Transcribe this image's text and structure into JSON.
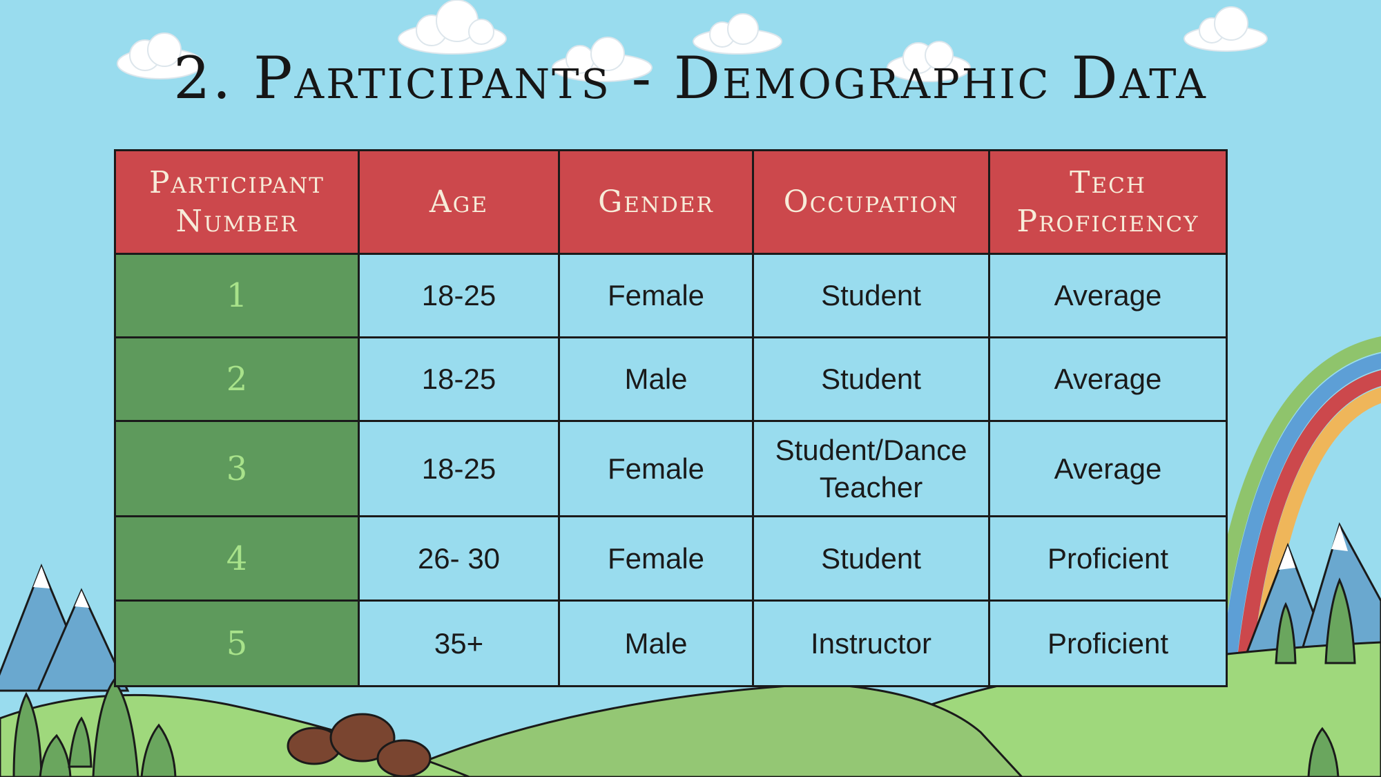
{
  "title": "2. Participants - Demographic Data",
  "colors": {
    "sky": "#99dcee",
    "header_bg": "#cc484c",
    "header_text": "#f7ecd9",
    "number_col_bg": "#5e9a5c",
    "number_col_text": "#a8e28a",
    "cell_bg": "#99dcee"
  },
  "table": {
    "headers": [
      "Participant Number",
      "Age",
      "Gender",
      "Occupation",
      "Tech Proficiency"
    ],
    "rows": [
      {
        "number": "1",
        "age": "18-25",
        "gender": "Female",
        "occupation": "Student",
        "tech": "Average"
      },
      {
        "number": "2",
        "age": "18-25",
        "gender": "Male",
        "occupation": "Student",
        "tech": "Average"
      },
      {
        "number": "3",
        "age": "18-25",
        "gender": "Female",
        "occupation": "Student/Dance Teacher",
        "tech": "Average"
      },
      {
        "number": "4",
        "age": "26- 30",
        "gender": "Female",
        "occupation": "Student",
        "tech": "Proficient"
      },
      {
        "number": "5",
        "age": "35+",
        "gender": "Male",
        "occupation": "Instructor",
        "tech": "Proficient"
      }
    ]
  }
}
